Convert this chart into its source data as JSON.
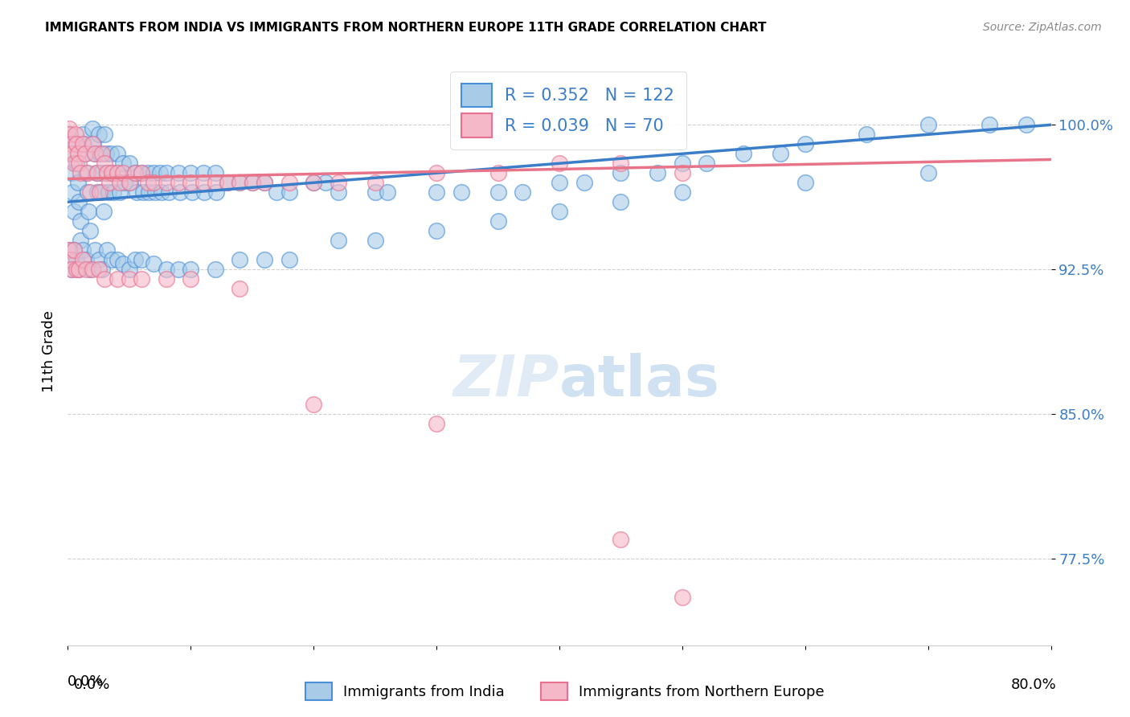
{
  "title": "IMMIGRANTS FROM INDIA VS IMMIGRANTS FROM NORTHERN EUROPE 11TH GRADE CORRELATION CHART",
  "source": "Source: ZipAtlas.com",
  "ylabel": "11th Grade",
  "xlim": [
    0.0,
    0.8
  ],
  "ylim": [
    73.0,
    103.5
  ],
  "y_ticks": [
    77.5,
    85.0,
    92.5,
    100.0
  ],
  "blue_R": 0.352,
  "blue_N": 122,
  "pink_R": 0.039,
  "pink_N": 70,
  "blue_color": "#a8cce8",
  "pink_color": "#f5b8c8",
  "blue_edge_color": "#4a90d9",
  "pink_edge_color": "#e87090",
  "blue_line_color": "#3a7dc9",
  "pink_line_color": "#e8748a",
  "blue_scatter_x": [
    0.001,
    0.002,
    0.003,
    0.004,
    0.005,
    0.006,
    0.007,
    0.008,
    0.009,
    0.01,
    0.01,
    0.012,
    0.013,
    0.014,
    0.015,
    0.016,
    0.017,
    0.018,
    0.02,
    0.021,
    0.022,
    0.023,
    0.024,
    0.025,
    0.026,
    0.027,
    0.028,
    0.029,
    0.03,
    0.031,
    0.032,
    0.033,
    0.035,
    0.036,
    0.037,
    0.04,
    0.041,
    0.042,
    0.045,
    0.046,
    0.05,
    0.051,
    0.055,
    0.056,
    0.06,
    0.061,
    0.065,
    0.066,
    0.07,
    0.071,
    0.075,
    0.076,
    0.08,
    0.082,
    0.09,
    0.091,
    0.1,
    0.101,
    0.11,
    0.111,
    0.12,
    0.121,
    0.13,
    0.14,
    0.15,
    0.16,
    0.17,
    0.18,
    0.2,
    0.21,
    0.22,
    0.25,
    0.26,
    0.3,
    0.32,
    0.35,
    0.37,
    0.4,
    0.42,
    0.45,
    0.48,
    0.5,
    0.52,
    0.55,
    0.58,
    0.6,
    0.65,
    0.7,
    0.75,
    0.78,
    0.001,
    0.002,
    0.003,
    0.005,
    0.007,
    0.009,
    0.012,
    0.015,
    0.018,
    0.022,
    0.025,
    0.028,
    0.032,
    0.036,
    0.04,
    0.045,
    0.05,
    0.055,
    0.06,
    0.07,
    0.08,
    0.09,
    0.1,
    0.12,
    0.14,
    0.16,
    0.18,
    0.22,
    0.25,
    0.3,
    0.35,
    0.4,
    0.45,
    0.5,
    0.6,
    0.7
  ],
  "blue_scatter_y": [
    99.5,
    98.5,
    97.5,
    96.5,
    95.5,
    99.0,
    98.0,
    97.0,
    96.0,
    95.0,
    94.0,
    99.5,
    99.0,
    98.5,
    97.5,
    96.5,
    95.5,
    94.5,
    99.8,
    99.0,
    98.5,
    97.5,
    96.5,
    99.5,
    98.5,
    97.5,
    96.5,
    95.5,
    99.5,
    98.5,
    97.5,
    96.5,
    98.5,
    97.5,
    96.5,
    98.5,
    97.5,
    96.5,
    98.0,
    97.0,
    98.0,
    97.0,
    97.5,
    96.5,
    97.5,
    96.5,
    97.5,
    96.5,
    97.5,
    96.5,
    97.5,
    96.5,
    97.5,
    96.5,
    97.5,
    96.5,
    97.5,
    96.5,
    97.5,
    96.5,
    97.5,
    96.5,
    97.0,
    97.0,
    97.0,
    97.0,
    96.5,
    96.5,
    97.0,
    97.0,
    96.5,
    96.5,
    96.5,
    96.5,
    96.5,
    96.5,
    96.5,
    97.0,
    97.0,
    97.5,
    97.5,
    98.0,
    98.0,
    98.5,
    98.5,
    99.0,
    99.5,
    100.0,
    100.0,
    100.0,
    93.5,
    93.0,
    92.5,
    93.5,
    93.0,
    92.5,
    93.5,
    93.0,
    92.5,
    93.5,
    93.0,
    92.5,
    93.5,
    93.0,
    93.0,
    92.8,
    92.5,
    93.0,
    93.0,
    92.8,
    92.5,
    92.5,
    92.5,
    92.5,
    93.0,
    93.0,
    93.0,
    94.0,
    94.0,
    94.5,
    95.0,
    95.5,
    96.0,
    96.5,
    97.0,
    97.5
  ],
  "pink_scatter_x": [
    0.001,
    0.002,
    0.003,
    0.004,
    0.005,
    0.006,
    0.007,
    0.008,
    0.009,
    0.01,
    0.012,
    0.014,
    0.016,
    0.018,
    0.02,
    0.022,
    0.024,
    0.026,
    0.028,
    0.03,
    0.032,
    0.034,
    0.036,
    0.04,
    0.042,
    0.045,
    0.05,
    0.055,
    0.06,
    0.065,
    0.07,
    0.08,
    0.09,
    0.1,
    0.11,
    0.12,
    0.13,
    0.14,
    0.15,
    0.16,
    0.18,
    0.2,
    0.22,
    0.25,
    0.3,
    0.35,
    0.4,
    0.45,
    0.5,
    0.001,
    0.002,
    0.003,
    0.005,
    0.007,
    0.009,
    0.012,
    0.015,
    0.02,
    0.025,
    0.03,
    0.04,
    0.05,
    0.06,
    0.08,
    0.1,
    0.14,
    0.2,
    0.3,
    0.45,
    0.5
  ],
  "pink_scatter_y": [
    99.8,
    99.5,
    99.0,
    98.5,
    98.0,
    99.5,
    99.0,
    98.5,
    98.0,
    97.5,
    99.0,
    98.5,
    97.5,
    96.5,
    99.0,
    98.5,
    97.5,
    96.5,
    98.5,
    98.0,
    97.5,
    97.0,
    97.5,
    97.5,
    97.0,
    97.5,
    97.0,
    97.5,
    97.5,
    97.0,
    97.0,
    97.0,
    97.0,
    97.0,
    97.0,
    97.0,
    97.0,
    97.0,
    97.0,
    97.0,
    97.0,
    97.0,
    97.0,
    97.0,
    97.5,
    97.5,
    98.0,
    98.0,
    97.5,
    93.5,
    93.0,
    92.5,
    93.5,
    92.5,
    92.5,
    93.0,
    92.5,
    92.5,
    92.5,
    92.0,
    92.0,
    92.0,
    92.0,
    92.0,
    92.0,
    91.5,
    85.5,
    84.5,
    78.5,
    75.5
  ]
}
